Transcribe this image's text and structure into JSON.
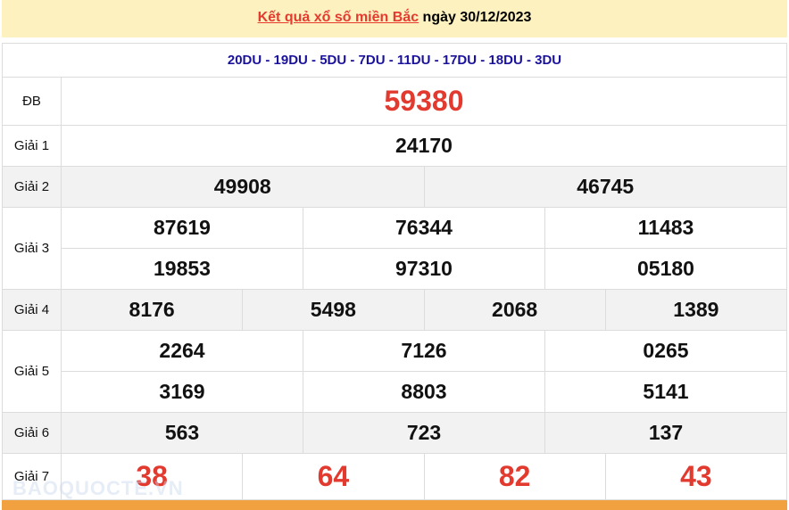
{
  "banner": {
    "link": "Kết quả xổ số miền Bắc",
    "suffix": " ngày 30/12/2023"
  },
  "codes": "20DU - 19DU - 5DU - 7DU - 11DU - 17DU - 18DU - 3DU",
  "prizes": {
    "db": {
      "label": "ĐB",
      "numbers": [
        "59380"
      ]
    },
    "g1": {
      "label": "Giải 1",
      "numbers": [
        "24170"
      ]
    },
    "g2": {
      "label": "Giải 2",
      "numbers": [
        "49908",
        "46745"
      ]
    },
    "g3": {
      "label": "Giải 3",
      "numbers": [
        "87619",
        "76344",
        "11483",
        "19853",
        "97310",
        "05180"
      ]
    },
    "g4": {
      "label": "Giải 4",
      "numbers": [
        "8176",
        "5498",
        "2068",
        "1389"
      ]
    },
    "g5": {
      "label": "Giải 5",
      "numbers": [
        "2264",
        "7126",
        "0265",
        "3169",
        "8803",
        "5141"
      ]
    },
    "g6": {
      "label": "Giải 6",
      "numbers": [
        "563",
        "723",
        "137"
      ]
    },
    "g7": {
      "label": "Giải 7",
      "numbers": [
        "38",
        "64",
        "82",
        "43"
      ]
    }
  },
  "watermark": "BAOQUOCTE.VN",
  "colors": {
    "accent_red": "#e23a2f",
    "code_blue": "#1a129b",
    "banner_bg": "#fdf1c0",
    "footer_orange": "#f2a140"
  }
}
